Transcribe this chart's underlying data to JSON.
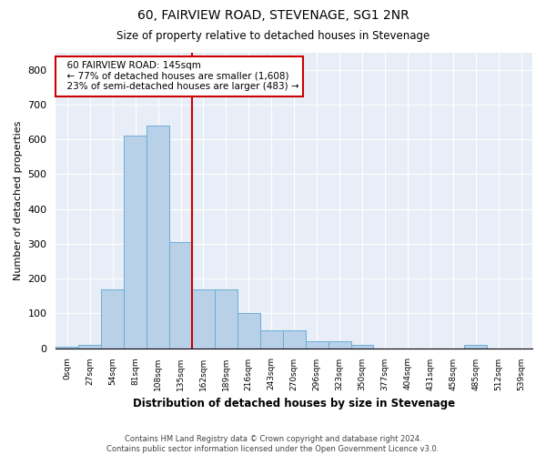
{
  "title1": "60, FAIRVIEW ROAD, STEVENAGE, SG1 2NR",
  "title2": "Size of property relative to detached houses in Stevenage",
  "xlabel": "Distribution of detached houses by size in Stevenage",
  "ylabel": "Number of detached properties",
  "bin_labels": [
    "0sqm",
    "27sqm",
    "54sqm",
    "81sqm",
    "108sqm",
    "135sqm",
    "162sqm",
    "189sqm",
    "216sqm",
    "243sqm",
    "270sqm",
    "296sqm",
    "323sqm",
    "350sqm",
    "377sqm",
    "404sqm",
    "431sqm",
    "458sqm",
    "485sqm",
    "512sqm",
    "539sqm"
  ],
  "bar_values": [
    5,
    10,
    170,
    610,
    640,
    305,
    170,
    170,
    100,
    50,
    50,
    20,
    20,
    10,
    0,
    0,
    0,
    0,
    10,
    0,
    0
  ],
  "bar_color": "#b8d0e8",
  "bar_edge_color": "#6baed6",
  "vline_color": "#cc0000",
  "vline_x": 5.5,
  "ylim": [
    0,
    850
  ],
  "yticks": [
    0,
    100,
    200,
    300,
    400,
    500,
    600,
    700,
    800
  ],
  "property_value": 145,
  "pct_smaller": 77,
  "n_smaller": 1608,
  "pct_larger": 23,
  "n_larger": 483,
  "annotation_box_color": "#cc0000",
  "footer_line1": "Contains HM Land Registry data © Crown copyright and database right 2024.",
  "footer_line2": "Contains public sector information licensed under the Open Government Licence v3.0.",
  "background_color": "#e8eef7"
}
